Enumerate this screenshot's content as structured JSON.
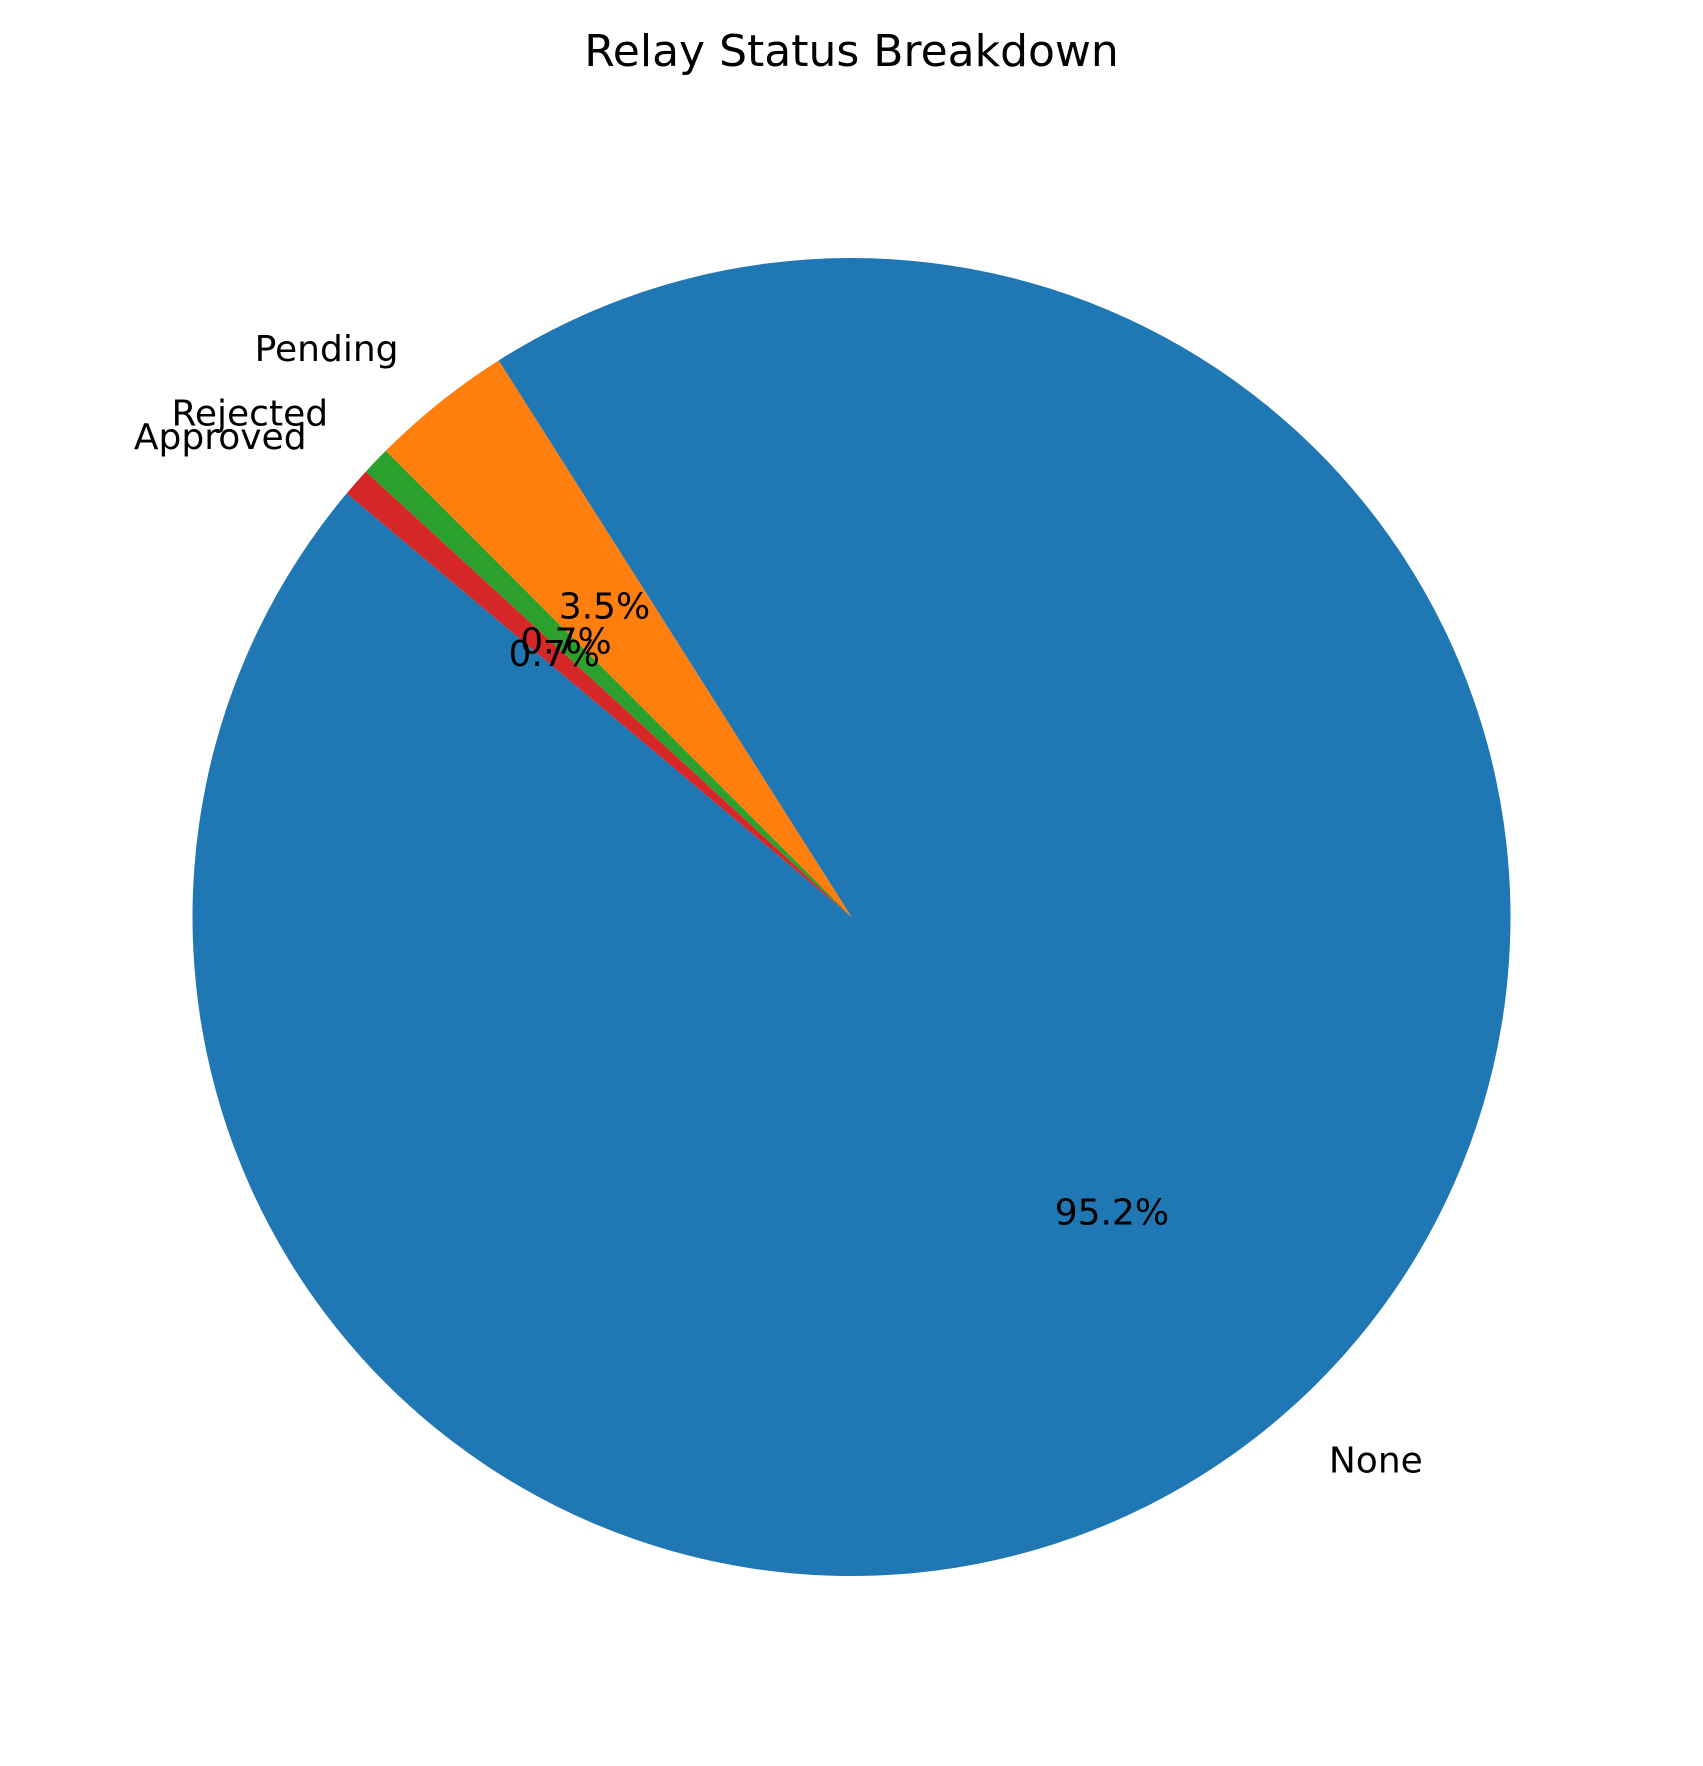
{
  "chart_data": {
    "type": "pie",
    "title": "Relay Status Breakdown",
    "slices": [
      {
        "label": "None",
        "value": 95.2,
        "pct_label": "95.2%",
        "color": "#1f77b4"
      },
      {
        "label": "Pending",
        "value": 3.5,
        "pct_label": "3.5%",
        "color": "#ff7f0e"
      },
      {
        "label": "Rejected",
        "value": 0.7,
        "pct_label": "0.7%",
        "color": "#2ca02c"
      },
      {
        "label": "Approved",
        "value": 0.7,
        "pct_label": "0.7%",
        "color": "#d62728"
      }
    ],
    "start_angle_deg": 140,
    "direction": "counterclockwise",
    "legend": "none"
  }
}
